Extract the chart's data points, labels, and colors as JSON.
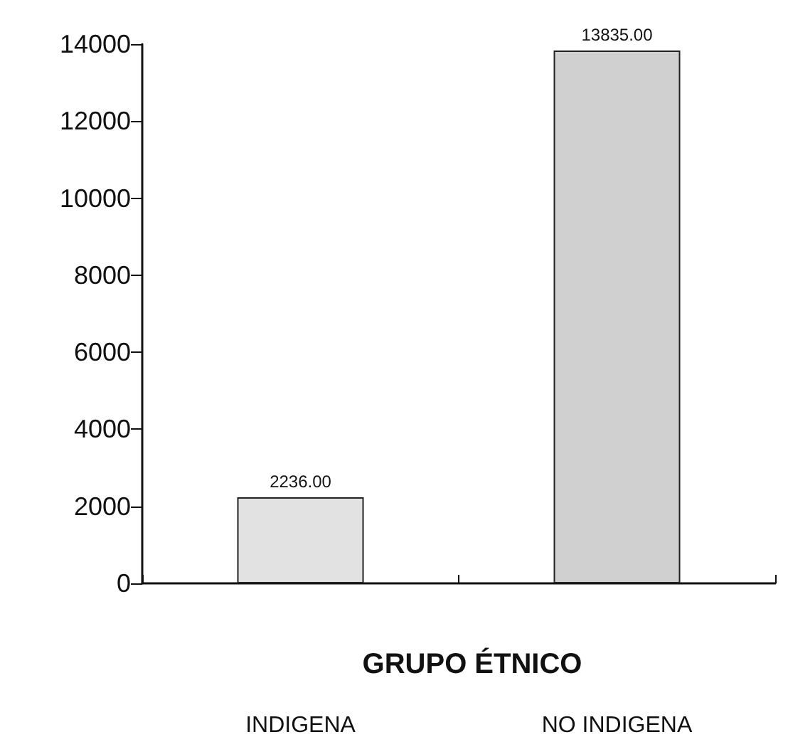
{
  "chart_data": {
    "type": "bar",
    "xlabel": "GRUPO ÉTNICO",
    "categories": [
      "INDIGENA",
      "NO INDIGENA"
    ],
    "values": [
      2236,
      13835
    ],
    "colors": [
      "#e2e2e2",
      "#d0d0d0"
    ],
    "value_labels": [
      "2236.00",
      "13835.00"
    ],
    "ylim": [
      0,
      14000
    ],
    "yticks": [
      0,
      2000,
      4000,
      6000,
      8000,
      10000,
      12000,
      14000
    ],
    "grid": false
  }
}
